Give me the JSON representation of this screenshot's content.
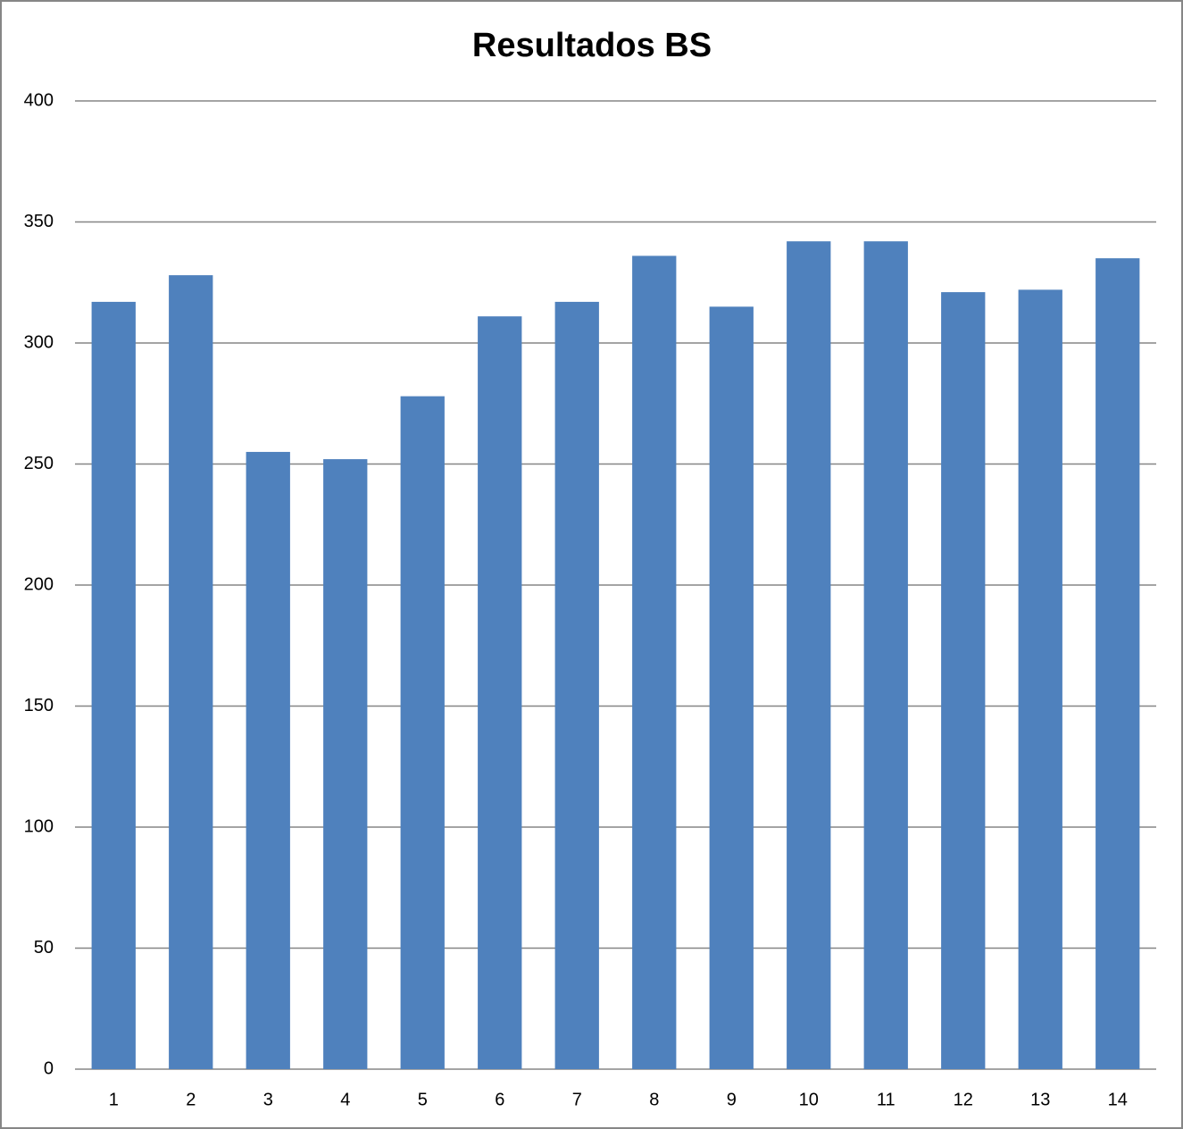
{
  "chart_data": {
    "type": "bar",
    "title": "Resultados BS",
    "categories": [
      "1",
      "2",
      "3",
      "4",
      "5",
      "6",
      "7",
      "8",
      "9",
      "10",
      "11",
      "12",
      "13",
      "14"
    ],
    "values": [
      317,
      328,
      255,
      252,
      278,
      311,
      317,
      336,
      315,
      342,
      342,
      321,
      322,
      335
    ],
    "color": "#4f81bd",
    "ylim": [
      0,
      400
    ],
    "yticks": [
      0,
      50,
      100,
      150,
      200,
      250,
      300,
      350,
      400
    ],
    "grid": true
  }
}
